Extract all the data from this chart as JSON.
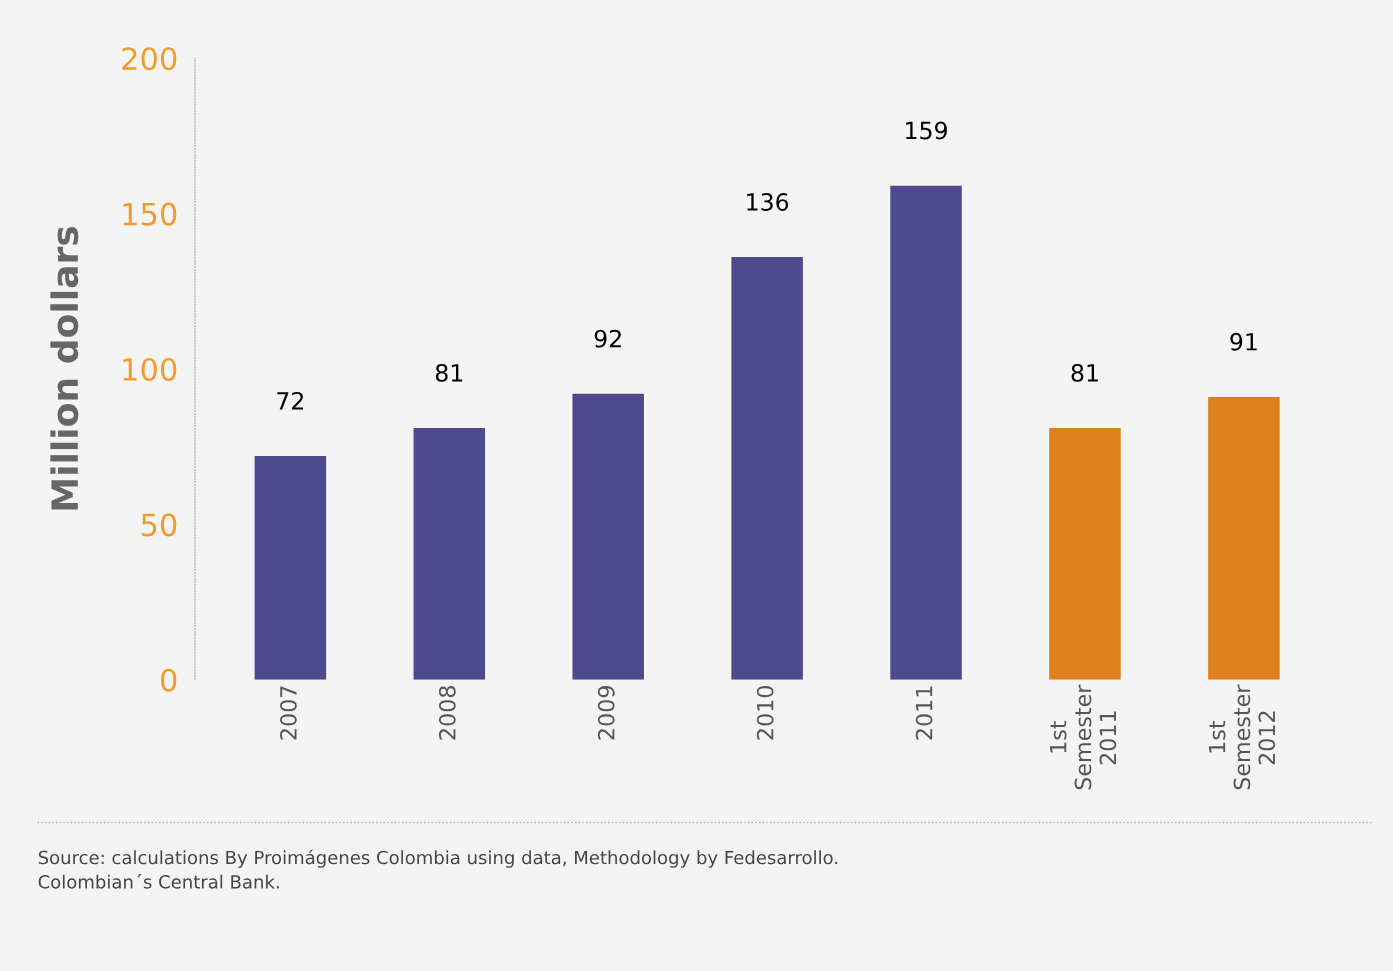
{
  "chart_data": {
    "type": "bar",
    "ylabel": "Million dollars",
    "categories": [
      "2007",
      "2008",
      "2009",
      "2010",
      "2011",
      "1st\nSemester\n2011",
      "1st\nSemester\n2012"
    ],
    "values": [
      72,
      81,
      92,
      136,
      159,
      81,
      91
    ],
    "colors": [
      "#4f4a8e",
      "#4f4a8e",
      "#4f4a8e",
      "#4f4a8e",
      "#4f4a8e",
      "#e0801c",
      "#e0801c"
    ],
    "ylim": [
      0,
      200
    ],
    "yticks": [
      0,
      50,
      100,
      150,
      200
    ],
    "grid": false,
    "data_labels": true,
    "annotations": [
      "Source: calculations By Proimágenes Colombia using data, Methodology by Fedesarrollo.\nColombian´s Central Bank."
    ]
  }
}
